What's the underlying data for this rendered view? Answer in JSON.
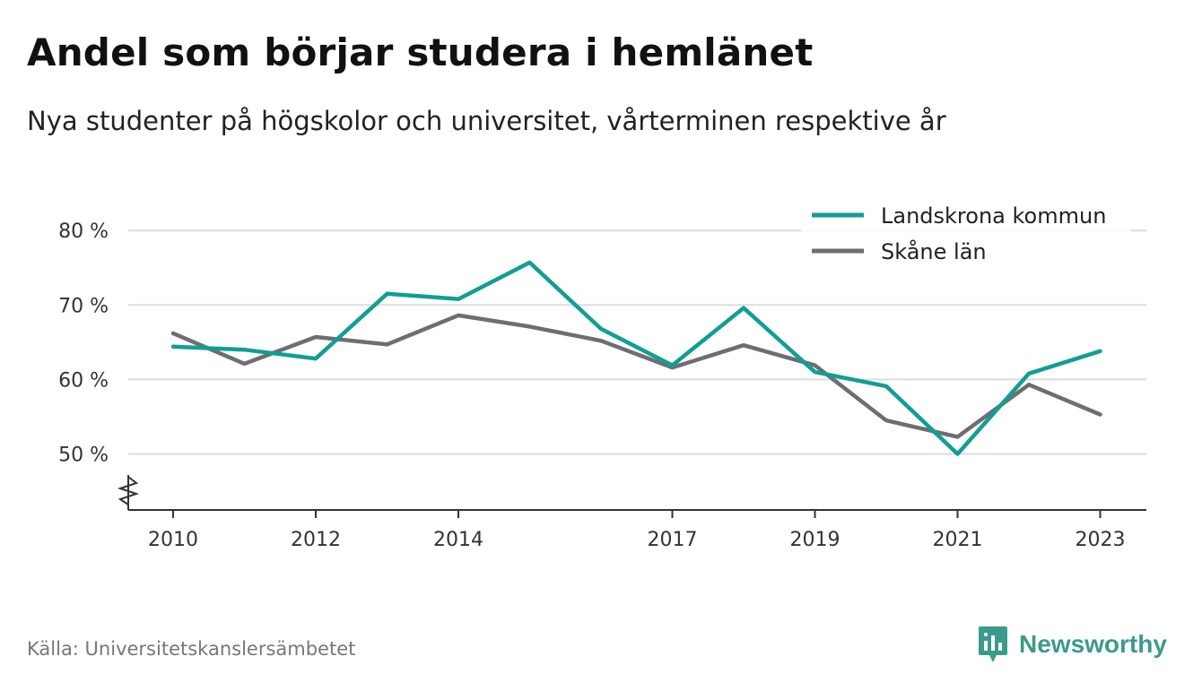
{
  "header": {
    "title": "Andel som börjar studera i hemlänet",
    "subtitle": "Nya studenter på högskolor och universitet, vårterminen respektive år"
  },
  "footer": {
    "source": "Källa: Universitetskanslersämbetet",
    "brand": "Newsworthy"
  },
  "colors": {
    "landskrona": "#119e95",
    "skane": "#6e6e72",
    "grid": "#dddddd",
    "axis": "#333333",
    "brand": "#3c9a8c"
  },
  "chart_data": {
    "type": "line",
    "x": [
      2010,
      2011,
      2012,
      2013,
      2014,
      2015,
      2016,
      2017,
      2018,
      2019,
      2020,
      2021,
      2022,
      2023
    ],
    "x_tick_labels": [
      "2010",
      "2012",
      "2014",
      "2017",
      "2019",
      "2021",
      "2023"
    ],
    "y_tick_labels": [
      "50 %",
      "60 %",
      "70 %",
      "80 %"
    ],
    "y_ticks": [
      50,
      60,
      70,
      80
    ],
    "ylim": [
      43,
      80
    ],
    "y_axis_break": true,
    "grid": true,
    "legend_position": "top-right",
    "series": [
      {
        "name": "Landskrona kommun",
        "color_key": "landskrona",
        "values": [
          64.4,
          64.0,
          62.8,
          71.5,
          70.8,
          75.7,
          66.8,
          61.9,
          69.6,
          61.0,
          59.1,
          50.0,
          60.8,
          63.8
        ]
      },
      {
        "name": "Skåne län",
        "color_key": "skane",
        "values": [
          66.2,
          62.1,
          65.7,
          64.7,
          68.6,
          67.1,
          65.2,
          61.6,
          64.6,
          61.9,
          54.5,
          52.3,
          59.3,
          55.3
        ]
      }
    ]
  }
}
